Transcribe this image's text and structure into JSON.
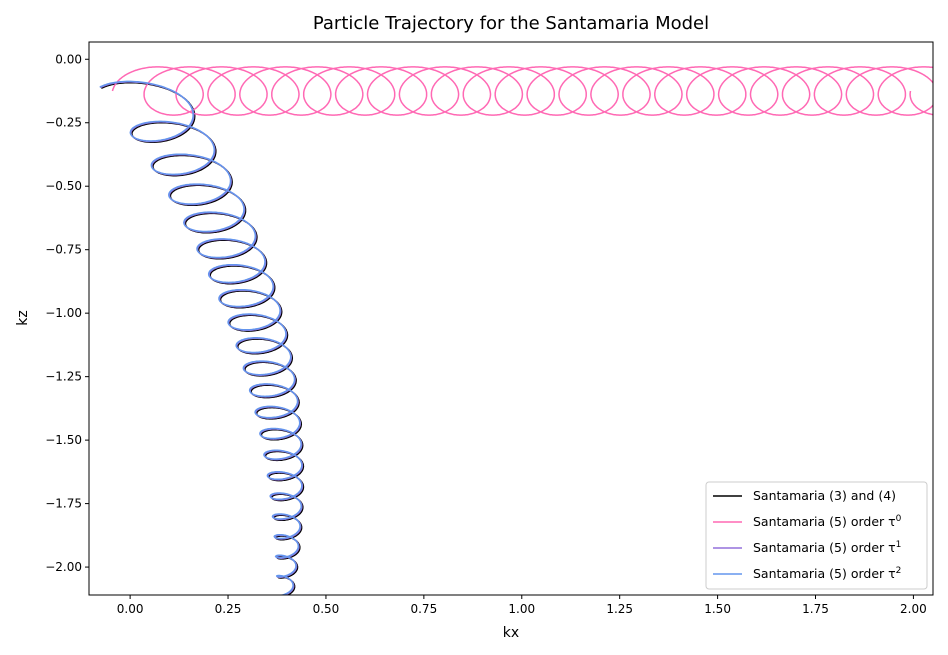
{
  "chart_data": {
    "type": "line",
    "title": "Particle Trajectory for the Santamaria Model",
    "xlabel": "kx",
    "ylabel": "kz",
    "xlim": [
      -0.105,
      2.05
    ],
    "ylim": [
      -2.11,
      0.068
    ],
    "xticks": [
      0.0,
      0.25,
      0.5,
      0.75,
      1.0,
      1.25,
      1.5,
      1.75,
      2.0
    ],
    "xtick_labels": [
      "0.00",
      "0.25",
      "0.50",
      "0.75",
      "1.00",
      "1.25",
      "1.50",
      "1.75",
      "2.00"
    ],
    "yticks": [
      0.0,
      -0.25,
      -0.5,
      -0.75,
      -1.0,
      -1.25,
      -1.5,
      -1.75,
      -2.0
    ],
    "ytick_labels": [
      "0.00",
      "−0.25",
      "−0.50",
      "−0.75",
      "−1.00",
      "−1.25",
      "−1.50",
      "−1.75",
      "−2.00"
    ],
    "grid": false,
    "legend_position": "lower-right",
    "series": [
      {
        "name": "Santamaria (3) and (4)",
        "legend_base": "Santamaria (3) and (4)",
        "legend_sup": "",
        "color": "#000000",
        "shape": "damped-spiral",
        "start": [
          0.0,
          0.0
        ],
        "end": [
          0.39,
          -2.11
        ],
        "loops": 22
      },
      {
        "name": "Santamaria (5) order τ0",
        "legend_base": "Santamaria (5) order τ",
        "legend_sup": "0",
        "color": "#ff69b4",
        "shape": "drifting-circles",
        "center_z": -0.125,
        "radius": 0.095,
        "x_start": 0.05,
        "drift_per_loop": 0.0815,
        "loops": 25
      },
      {
        "name": "Santamaria (5) order τ1",
        "legend_base": "Santamaria (5) order τ",
        "legend_sup": "1",
        "color": "#9370db",
        "shape": "damped-spiral",
        "start": [
          0.0,
          0.0
        ],
        "end": [
          0.39,
          -2.11
        ],
        "loops": 22
      },
      {
        "name": "Santamaria (5) order τ2",
        "legend_base": "Santamaria (5) order τ",
        "legend_sup": "2",
        "color": "#6495ed",
        "shape": "damped-spiral",
        "start": [
          0.0,
          0.0
        ],
        "end": [
          0.39,
          -2.11
        ],
        "loops": 22
      }
    ]
  }
}
